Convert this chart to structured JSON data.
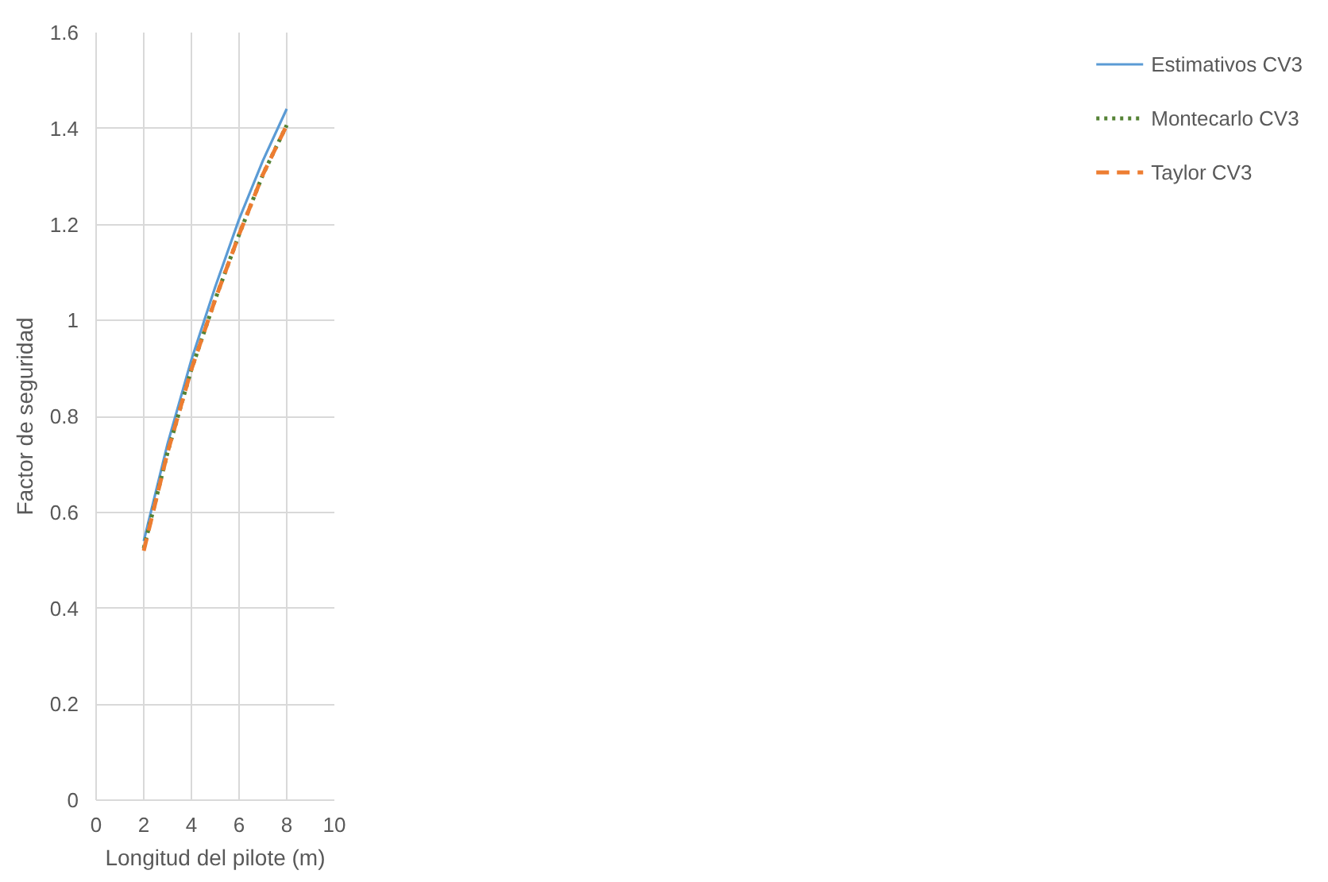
{
  "chart_data": {
    "type": "line",
    "xlabel": "Longitud del pilote (m)",
    "ylabel": "Factor de seguridad",
    "x": [
      2,
      3,
      4,
      5,
      6,
      7,
      8
    ],
    "series": [
      {
        "name": "Estimativos CV3",
        "color": "#5b9bd5",
        "line_style": "solid",
        "values": [
          0.54,
          0.743,
          0.918,
          1.07,
          1.211,
          1.333,
          1.441
        ]
      },
      {
        "name": "Montecarlo CV3",
        "color": "#548235",
        "line_style": "dotted",
        "values": [
          0.525,
          0.725,
          0.898,
          1.044,
          1.179,
          1.304,
          1.407
        ]
      },
      {
        "name": "Taylor CV3",
        "color": "#ed7d31",
        "line_style": "dashed",
        "values": [
          0.52,
          0.725,
          0.898,
          1.044,
          1.179,
          1.304,
          1.407
        ]
      }
    ],
    "xlim": [
      0,
      10
    ],
    "xticks": [
      0,
      2,
      4,
      6,
      8,
      10
    ],
    "ylim": [
      0,
      1.6
    ],
    "yticks": [
      0,
      0.2,
      0.4,
      0.6,
      0.8,
      1,
      1.2,
      1.4,
      1.6
    ],
    "grid": true,
    "legend": "right",
    "marker": "none"
  }
}
